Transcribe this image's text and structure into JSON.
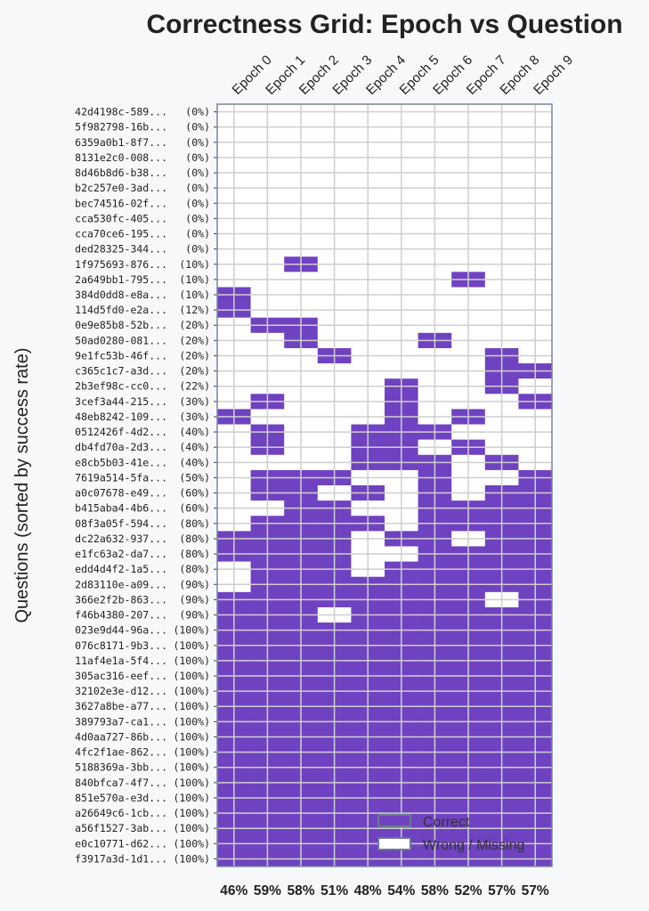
{
  "chart_data": {
    "type": "heatmap",
    "title": "Correctness Grid: Epoch vs Question",
    "xlabel": "",
    "ylabel": "Questions (sorted by success rate)",
    "columns": [
      "Epoch 0",
      "Epoch 1",
      "Epoch 2",
      "Epoch 3",
      "Epoch 4",
      "Epoch 5",
      "Epoch 6",
      "Epoch 7",
      "Epoch 8",
      "Epoch 9"
    ],
    "column_rates": [
      "46%",
      "59%",
      "58%",
      "51%",
      "48%",
      "54%",
      "58%",
      "52%",
      "57%",
      "57%"
    ],
    "legend": [
      {
        "label": "Correct",
        "color": "#6f42c1"
      },
      {
        "label": "Wrong / Missing",
        "color": "#ffffff"
      }
    ],
    "legend_placement": "bottom-right",
    "rows": [
      {
        "id": "42d4198c-589...",
        "rate": "(0%)",
        "cells": "0000000000"
      },
      {
        "id": "5f982798-16b...",
        "rate": "(0%)",
        "cells": "0000000000"
      },
      {
        "id": "6359a0b1-8f7...",
        "rate": "(0%)",
        "cells": "0000000000"
      },
      {
        "id": "8131e2c0-008...",
        "rate": "(0%)",
        "cells": "0000000000"
      },
      {
        "id": "8d46b8d6-b38...",
        "rate": "(0%)",
        "cells": "0000000000"
      },
      {
        "id": "b2c257e0-3ad...",
        "rate": "(0%)",
        "cells": "0000000000"
      },
      {
        "id": "bec74516-02f...",
        "rate": "(0%)",
        "cells": "0000000000"
      },
      {
        "id": "cca530fc-405...",
        "rate": "(0%)",
        "cells": "0000000000"
      },
      {
        "id": "cca70ce6-195...",
        "rate": "(0%)",
        "cells": "0000000000"
      },
      {
        "id": "ded28325-344...",
        "rate": "(0%)",
        "cells": "0000000000"
      },
      {
        "id": "1f975693-876...",
        "rate": "(10%)",
        "cells": "0010000000"
      },
      {
        "id": "2a649bb1-795...",
        "rate": "(10%)",
        "cells": "0000000100"
      },
      {
        "id": "384d0dd8-e8a...",
        "rate": "(10%)",
        "cells": "1000000000"
      },
      {
        "id": "114d5fd0-e2a...",
        "rate": "(12%)",
        "cells": "1000000000"
      },
      {
        "id": "0e9e85b8-52b...",
        "rate": "(20%)",
        "cells": "0110000000"
      },
      {
        "id": "50ad0280-081...",
        "rate": "(20%)",
        "cells": "0010001000"
      },
      {
        "id": "9e1fc53b-46f...",
        "rate": "(20%)",
        "cells": "0001000010"
      },
      {
        "id": "c365c1c7-a3d...",
        "rate": "(20%)",
        "cells": "0000000011"
      },
      {
        "id": "2b3ef98c-cc0...",
        "rate": "(22%)",
        "cells": "0000010010"
      },
      {
        "id": "3cef3a44-215...",
        "rate": "(30%)",
        "cells": "0100010001"
      },
      {
        "id": "48eb8242-109...",
        "rate": "(30%)",
        "cells": "1000010100"
      },
      {
        "id": "0512426f-4d2...",
        "rate": "(40%)",
        "cells": "0100111000"
      },
      {
        "id": "db4fd70a-2d3...",
        "rate": "(40%)",
        "cells": "0100110100"
      },
      {
        "id": "e8cb5b03-41e...",
        "rate": "(40%)",
        "cells": "0000111010"
      },
      {
        "id": "7619a514-5fa...",
        "rate": "(50%)",
        "cells": "0111001001"
      },
      {
        "id": "a0c07678-e49...",
        "rate": "(60%)",
        "cells": "0110101011"
      },
      {
        "id": "b415aba4-4b6...",
        "rate": "(60%)",
        "cells": "0011001111"
      },
      {
        "id": "08f3a05f-594...",
        "rate": "(80%)",
        "cells": "0111101111"
      },
      {
        "id": "dc22a632-937...",
        "rate": "(80%)",
        "cells": "1111011011"
      },
      {
        "id": "e1fc63a2-da7...",
        "rate": "(80%)",
        "cells": "1111001111"
      },
      {
        "id": "edd4d4f2-1a5...",
        "rate": "(80%)",
        "cells": "0111011111"
      },
      {
        "id": "2d83110e-a09...",
        "rate": "(90%)",
        "cells": "0111111111"
      },
      {
        "id": "366e2f2b-863...",
        "rate": "(90%)",
        "cells": "1111111101"
      },
      {
        "id": "f46b4380-207...",
        "rate": "(90%)",
        "cells": "1110111111"
      },
      {
        "id": "023e9d44-96a...",
        "rate": "(100%)",
        "cells": "1111111111"
      },
      {
        "id": "076c8171-9b3...",
        "rate": "(100%)",
        "cells": "1111111111"
      },
      {
        "id": "11af4e1a-5f4...",
        "rate": "(100%)",
        "cells": "1111111111"
      },
      {
        "id": "305ac316-eef...",
        "rate": "(100%)",
        "cells": "1111111111"
      },
      {
        "id": "32102e3e-d12...",
        "rate": "(100%)",
        "cells": "1111111111"
      },
      {
        "id": "3627a8be-a77...",
        "rate": "(100%)",
        "cells": "1111111111"
      },
      {
        "id": "389793a7-ca1...",
        "rate": "(100%)",
        "cells": "1111111111"
      },
      {
        "id": "4d0aa727-86b...",
        "rate": "(100%)",
        "cells": "1111111111"
      },
      {
        "id": "4fc2f1ae-862...",
        "rate": "(100%)",
        "cells": "1111111111"
      },
      {
        "id": "5188369a-3bb...",
        "rate": "(100%)",
        "cells": "1111111111"
      },
      {
        "id": "840bfca7-4f7...",
        "rate": "(100%)",
        "cells": "1111111111"
      },
      {
        "id": "851e570a-e3d...",
        "rate": "(100%)",
        "cells": "1111111111"
      },
      {
        "id": "a26649c6-1cb...",
        "rate": "(100%)",
        "cells": "1111111111"
      },
      {
        "id": "a56f1527-3ab...",
        "rate": "(100%)",
        "cells": "1111111111"
      },
      {
        "id": "e0c10771-d62...",
        "rate": "(100%)",
        "cells": "1111111111"
      },
      {
        "id": "f3917a3d-1d1...",
        "rate": "(100%)",
        "cells": "1111111111"
      }
    ]
  }
}
